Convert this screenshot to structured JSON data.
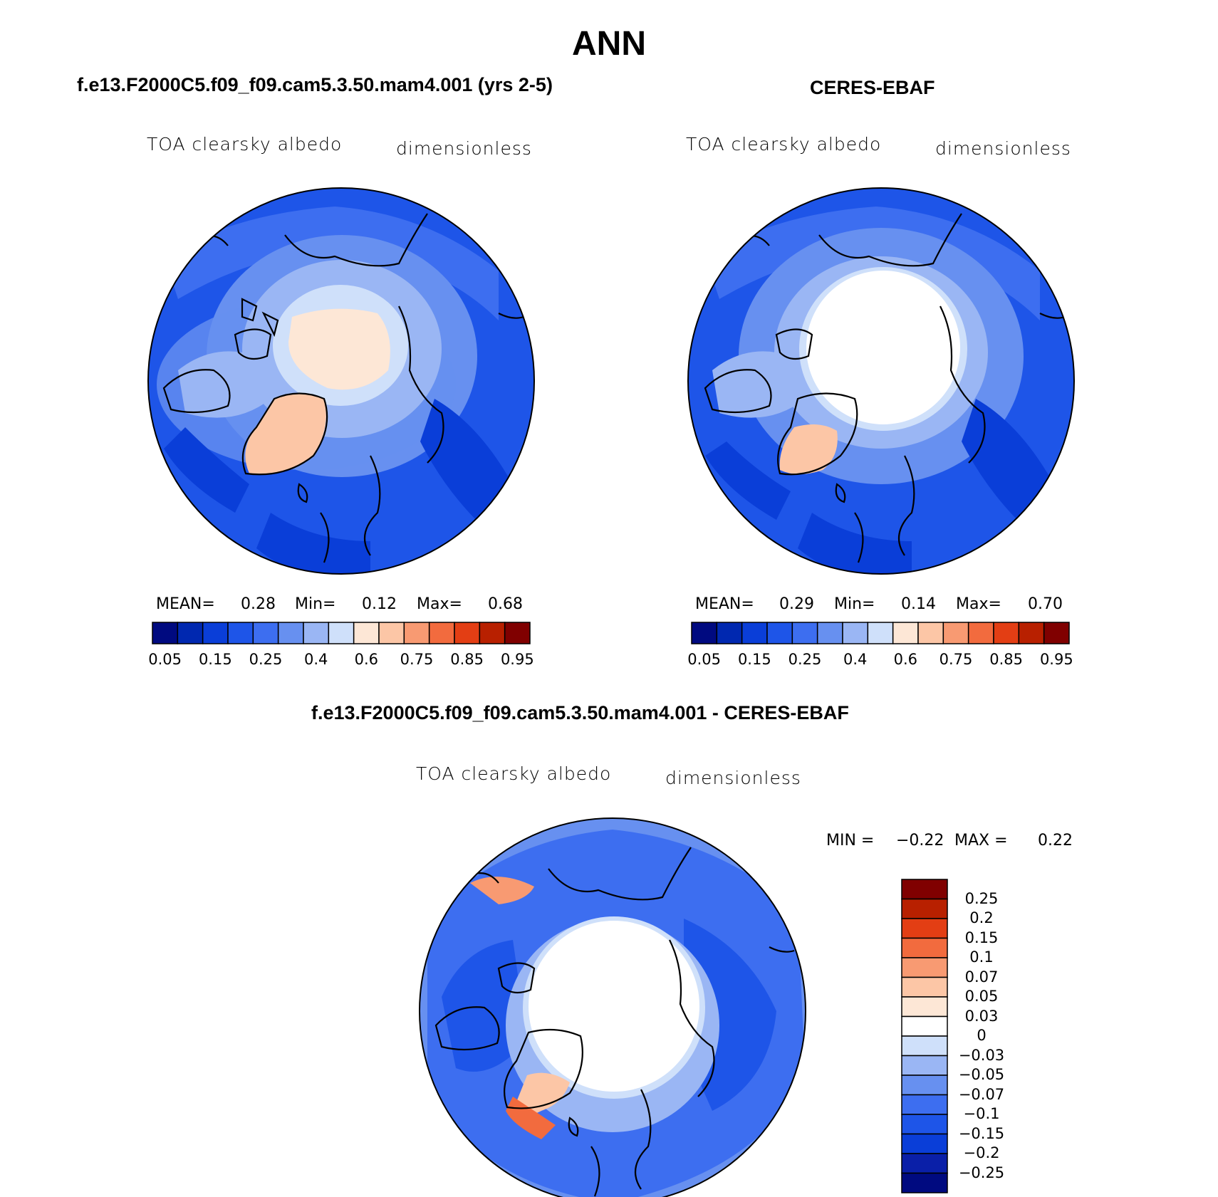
{
  "season": "ANN",
  "colors": {
    "abs_scale": [
      "#000a80",
      "#0028b0",
      "#0a3ed8",
      "#1e55e8",
      "#3d6ef0",
      "#6790f0",
      "#9ab6f4",
      "#cfe0fa",
      "#fde7d6",
      "#fcc6a6",
      "#f89a72",
      "#f26b3e",
      "#e33e14",
      "#b82000",
      "#800000"
    ],
    "diff_scale": [
      "#000a80",
      "#0a1fa8",
      "#0a3ed8",
      "#1e55e8",
      "#3d6ef0",
      "#6790f0",
      "#9ab6f4",
      "#cfe0fa",
      "#fde7d6",
      "#fcc6a6",
      "#f89a72",
      "#f26b3e",
      "#e33e14",
      "#b82000",
      "#800000"
    ]
  },
  "panels": {
    "model": {
      "title": "f.e13.F2000C5.f09_f09.cam5.3.50.mam4.001 (yrs 2-5)",
      "variable": "TOA clearsky albedo",
      "units": "dimensionless",
      "mean_label": "MEAN=",
      "mean": "0.28",
      "min_label": "Min=",
      "min": "0.12",
      "max_label": "Max=",
      "max": "0.68"
    },
    "obs": {
      "title": "CERES-EBAF",
      "variable": "TOA clearsky albedo",
      "units": "dimensionless",
      "mean_label": "MEAN=",
      "mean": "0.29",
      "min_label": "Min=",
      "min": "0.14",
      "max_label": "Max=",
      "max": "0.70"
    },
    "diff": {
      "title": "f.e13.F2000C5.f09_f09.cam5.3.50.mam4.001 - CERES-EBAF",
      "variable": "TOA clearsky albedo",
      "units": "dimensionless",
      "min_label": "MIN =",
      "min": "−0.22",
      "max_label": "MAX =",
      "max": "0.22"
    }
  },
  "abs_ticks": [
    "0.05",
    "0.15",
    "0.25",
    "0.4",
    "0.6",
    "0.75",
    "0.85",
    "0.95"
  ],
  "diff_ticks": [
    "0.25",
    "0.2",
    "0.15",
    "0.1",
    "0.07",
    "0.05",
    "0.03",
    "0",
    "−0.03",
    "−0.05",
    "−0.07",
    "−0.1",
    "−0.15",
    "−0.2",
    "−0.25"
  ]
}
